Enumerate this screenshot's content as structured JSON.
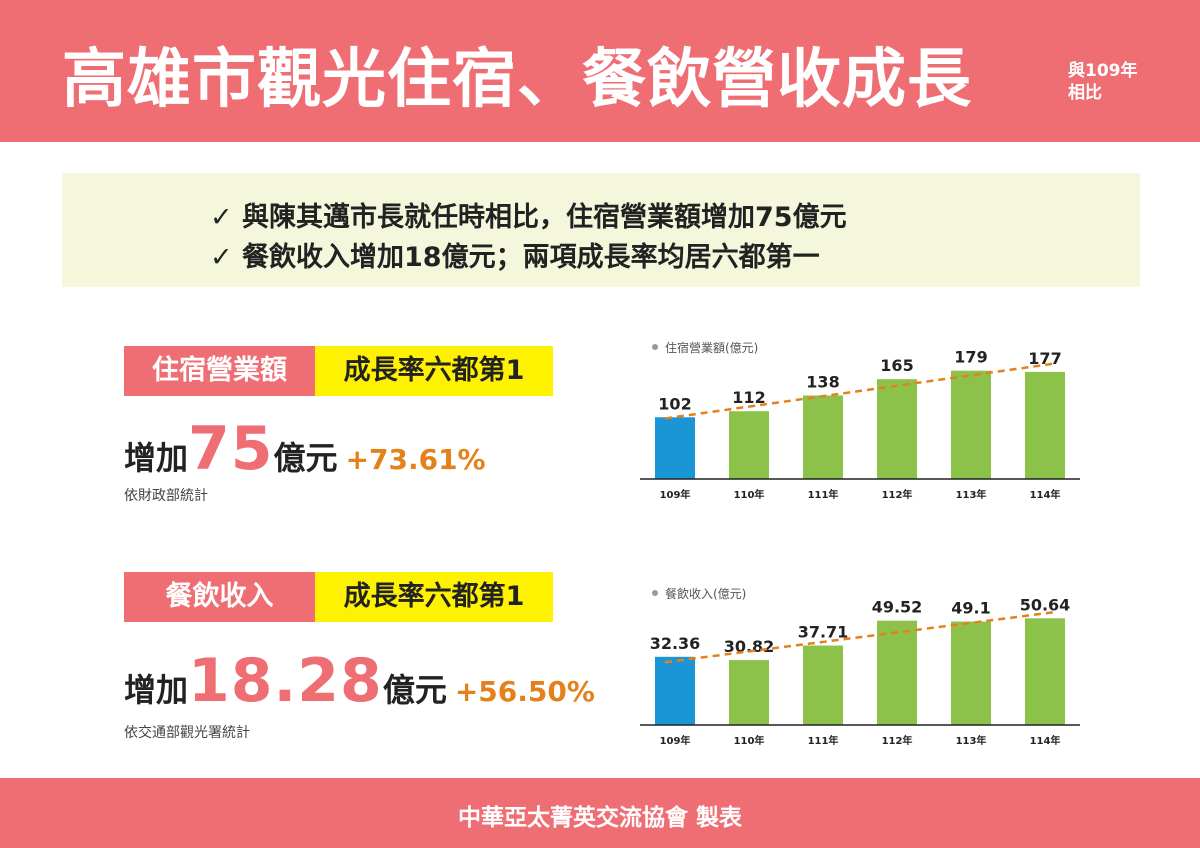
{
  "header": {
    "title": "高雄市觀光住宿、餐飲營收成長",
    "subtitle_line1": "與109年",
    "subtitle_line2": "相比"
  },
  "summary": {
    "line1": "✓ 與陳其邁市長就任時相比，住宿營業額增加75億元",
    "line2": "✓ 餐飲收入增加18億元；兩項成長率均居六都第一"
  },
  "lodging": {
    "tag_label": "住宿營業額",
    "tag_rank": "成長率六都第1",
    "stat_prefix": "增加",
    "stat_value": "75",
    "stat_unit": "億元",
    "stat_percent": "+73.61%",
    "note": "依財政部統計"
  },
  "dining": {
    "tag_label": "餐飲收入",
    "tag_rank": "成長率六都第1",
    "stat_prefix": "增加",
    "stat_value": "18.28",
    "stat_unit": "億元",
    "stat_percent": "+56.50%",
    "note": "依交通部觀光署統計"
  },
  "colors": {
    "accent": "#ee6e73",
    "highlight": "#fff200",
    "bar_base": "#1a96d6",
    "bar": "#8dc24a",
    "trend": "#e5811c"
  },
  "chart_data": [
    {
      "type": "bar",
      "title": "住宿營業額(億元)",
      "categories": [
        "109年",
        "110年",
        "111年",
        "112年",
        "113年",
        "114年"
      ],
      "values": [
        102,
        112,
        138,
        165,
        179,
        177
      ],
      "labels": [
        "102",
        "112",
        "138",
        "165",
        "179",
        "177"
      ],
      "ylim": [
        0,
        195
      ],
      "trend_line": "dashed",
      "grid": false
    },
    {
      "type": "bar",
      "title": "餐飲收入(億元)",
      "categories": [
        "109年",
        "110年",
        "111年",
        "112年",
        "113年",
        "114年"
      ],
      "values": [
        32.36,
        30.82,
        37.71,
        49.52,
        49.1,
        50.64
      ],
      "labels": [
        "32.36",
        "30.82",
        "37.71",
        "49.52",
        "49.1",
        "50.64"
      ],
      "ylim": [
        0,
        56
      ],
      "trend_line": "dashed",
      "grid": false
    }
  ],
  "footer": {
    "text": "中華亞太菁英交流協會  製表"
  }
}
